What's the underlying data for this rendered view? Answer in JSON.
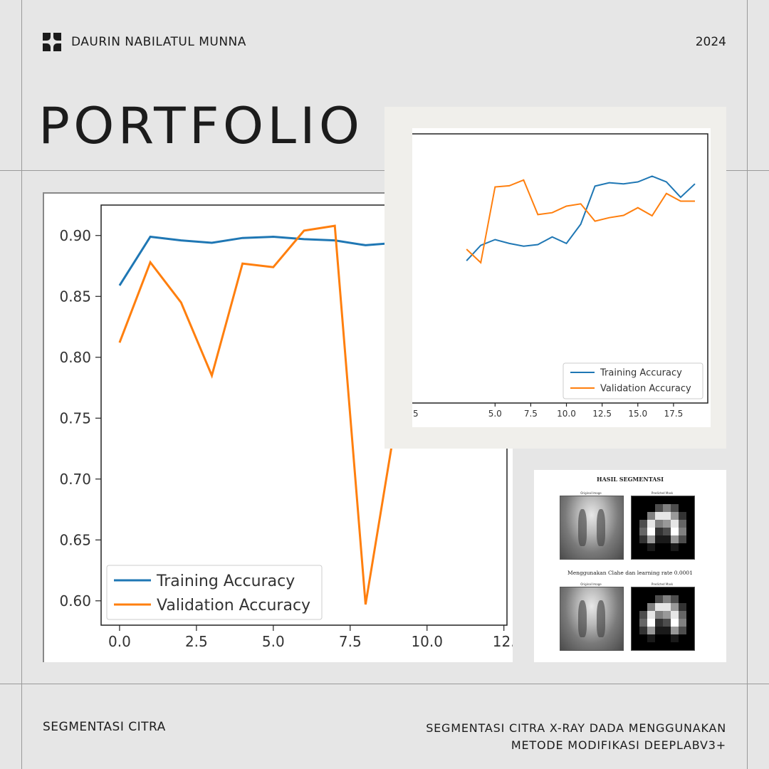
{
  "header": {
    "author": "DAURIN NABILATUL MUNNA",
    "year": "2024",
    "title": "PORTFOLIO"
  },
  "footer": {
    "left": "SEGMENTASI CITRA",
    "right_line1": "SEGMENTASI CITRA X-RAY DADA MENGGUNAKAN",
    "right_line2": "METODE MODIFIKASI DEEPLABV3+"
  },
  "segmentation": {
    "title": "HASIL SEGMENTASI",
    "caption": "Menggunakan Clahe dan learning rate 0.0001",
    "original_label": "Original Image",
    "mask_label": "Predicted Mask"
  },
  "chart_data": [
    {
      "type": "line",
      "ylim": [
        0.58,
        0.925
      ],
      "xlim": [
        -0.6,
        12.6
      ],
      "yticks": [
        "0.60",
        "0.65",
        "0.70",
        "0.75",
        "0.80",
        "0.85",
        "0.90"
      ],
      "xticks": [
        "0.0",
        "2.5",
        "5.0",
        "7.5",
        "10.0",
        "12."
      ],
      "legend_position": "lower-left",
      "series": [
        {
          "name": "Training Accuracy",
          "color": "#1f77b4",
          "x": [
            0,
            1,
            2,
            3,
            4,
            5,
            6,
            7,
            8,
            9
          ],
          "y": [
            0.859,
            0.899,
            0.896,
            0.894,
            0.898,
            0.899,
            0.897,
            0.896,
            0.892,
            0.894
          ]
        },
        {
          "name": "Validation Accuracy",
          "color": "#ff7f0e",
          "x": [
            0,
            1,
            2,
            3,
            4,
            5,
            6,
            7,
            8,
            9
          ],
          "y": [
            0.812,
            0.878,
            0.845,
            0.785,
            0.877,
            0.874,
            0.904,
            0.908,
            0.597,
            0.75
          ]
        }
      ]
    },
    {
      "type": "line",
      "ylim": [
        0.86,
        0.93
      ],
      "xlim": [
        -0.9,
        19.9
      ],
      "xticks": [
        "5",
        "5.0",
        "7.5",
        "10.0",
        "12.5",
        "15.0",
        "17.5"
      ],
      "legend_position": "lower-right",
      "series": [
        {
          "name": "Training Accuracy",
          "color": "#1f77b4",
          "x": [
            3,
            4,
            5,
            6,
            7,
            8,
            9,
            10,
            11,
            12,
            13,
            14,
            15,
            16,
            17,
            18,
            19
          ],
          "y": [
            0.897,
            0.901,
            0.9025,
            0.9015,
            0.9008,
            0.9012,
            0.9032,
            0.9015,
            0.9065,
            0.9164,
            0.9173,
            0.917,
            0.9175,
            0.919,
            0.9175,
            0.9135,
            0.917
          ]
        },
        {
          "name": "Validation Accuracy",
          "color": "#ff7f0e",
          "x": [
            3,
            4,
            5,
            6,
            7,
            8,
            9,
            10,
            11,
            12,
            13,
            14,
            15,
            16,
            17,
            18,
            19
          ],
          "y": [
            0.9,
            0.8965,
            0.9162,
            0.9165,
            0.918,
            0.909,
            0.9095,
            0.9112,
            0.9118,
            0.9073,
            0.9082,
            0.9088,
            0.9108,
            0.9087,
            0.9145,
            0.9125,
            0.9125
          ]
        }
      ]
    }
  ]
}
